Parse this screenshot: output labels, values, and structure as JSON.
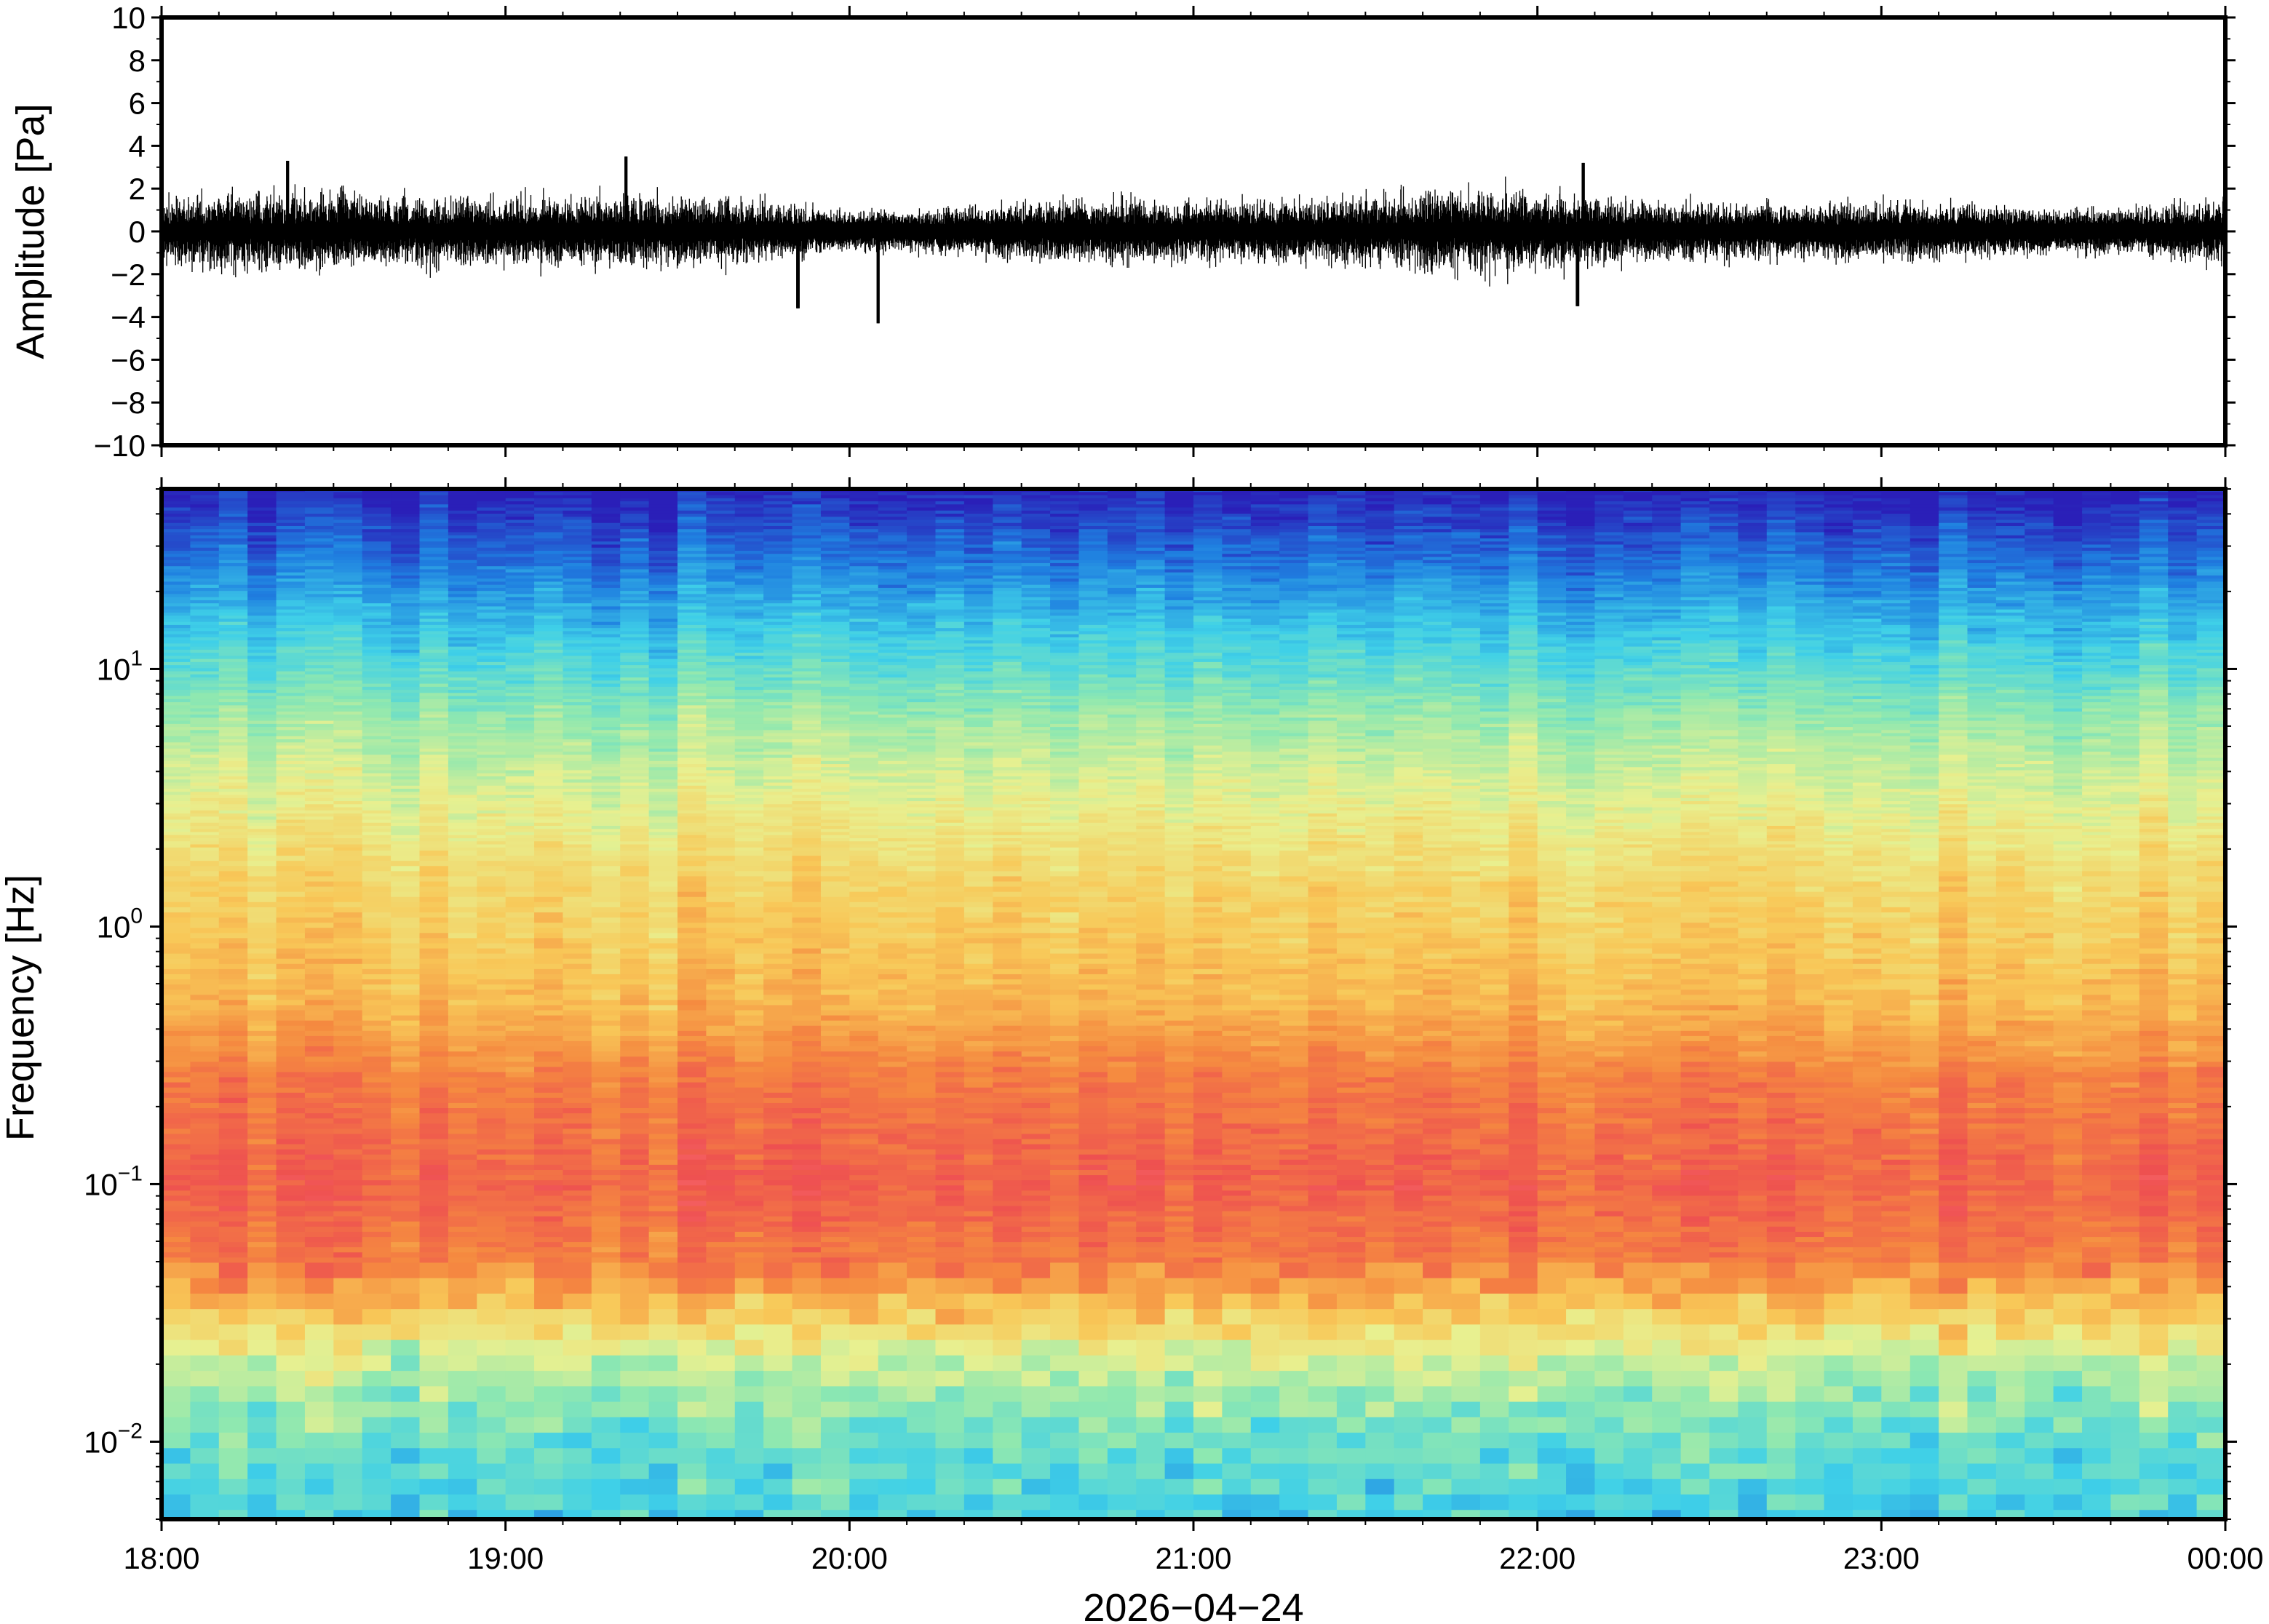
{
  "chart_data": [
    {
      "type": "line",
      "title": "",
      "ylabel": "Amplitude [Pa]",
      "xlabel": "",
      "ylim": [
        -10,
        10
      ],
      "yticks": [
        10,
        8,
        6,
        4,
        2,
        0,
        -2,
        -4,
        -6,
        -8,
        -10
      ],
      "ytick_labels": [
        "10",
        "8",
        "6",
        "4",
        "2",
        "0",
        "−2",
        "−4",
        "−6",
        "−8",
        "−10"
      ],
      "xlim_hours": [
        0,
        6
      ],
      "grid": false,
      "series": [
        {
          "color": "#000000",
          "description_values": {
            "typical_range": [
              -1.8,
              1.8
            ],
            "peaks": [
              {
                "time": "18:22",
                "value": 3.3
              },
              {
                "time": "19:21",
                "value": 3.5
              },
              {
                "time": "19:51",
                "value": -3.6
              },
              {
                "time": "20:05",
                "value": -4.3
              },
              {
                "time": "22:08",
                "value": 3.2
              },
              {
                "time": "22:07",
                "value": -3.5
              }
            ]
          }
        }
      ]
    },
    {
      "type": "heatmap",
      "title": "",
      "ylabel": "Frequency [Hz]",
      "xlabel": "2026−04−24",
      "yscale": "log",
      "ylim": [
        0.005,
        50
      ],
      "ytick_values": [
        10,
        1,
        0.1,
        0.01
      ],
      "ytick_labels": [
        {
          "base": "10",
          "exp": "1"
        },
        {
          "base": "10",
          "exp": "0"
        },
        {
          "base": "10",
          "exp": "−1"
        },
        {
          "base": "10",
          "exp": "−2"
        }
      ],
      "xtick_labels": [
        "18:00",
        "19:00",
        "20:00",
        "21:00",
        "22:00",
        "23:00",
        "00:00"
      ],
      "colormap": [
        "#2a1fb8",
        "#1f7fe0",
        "#3fd0e8",
        "#8fe8b0",
        "#e8f090",
        "#f8c858",
        "#f58a40",
        "#ee5050",
        "#ff7a80"
      ],
      "colorbar": false,
      "bands": [
        {
          "freq_range": [
            20,
            50
          ],
          "level": "blue"
        },
        {
          "freq_range": [
            8,
            20
          ],
          "level": "cyan"
        },
        {
          "freq_range": [
            3,
            8
          ],
          "level": "green-yellow"
        },
        {
          "freq_range": [
            0.5,
            3
          ],
          "level": "yellow-orange"
        },
        {
          "freq_range": [
            0.05,
            0.5
          ],
          "level": "red"
        },
        {
          "freq_range": [
            0.02,
            0.05
          ],
          "level": "orange-yellow"
        },
        {
          "freq_range": [
            0.005,
            0.02
          ],
          "level": "green-cyan"
        }
      ]
    }
  ],
  "colors": {
    "trace": "#000000",
    "frame": "#000000",
    "background": "#ffffff"
  }
}
